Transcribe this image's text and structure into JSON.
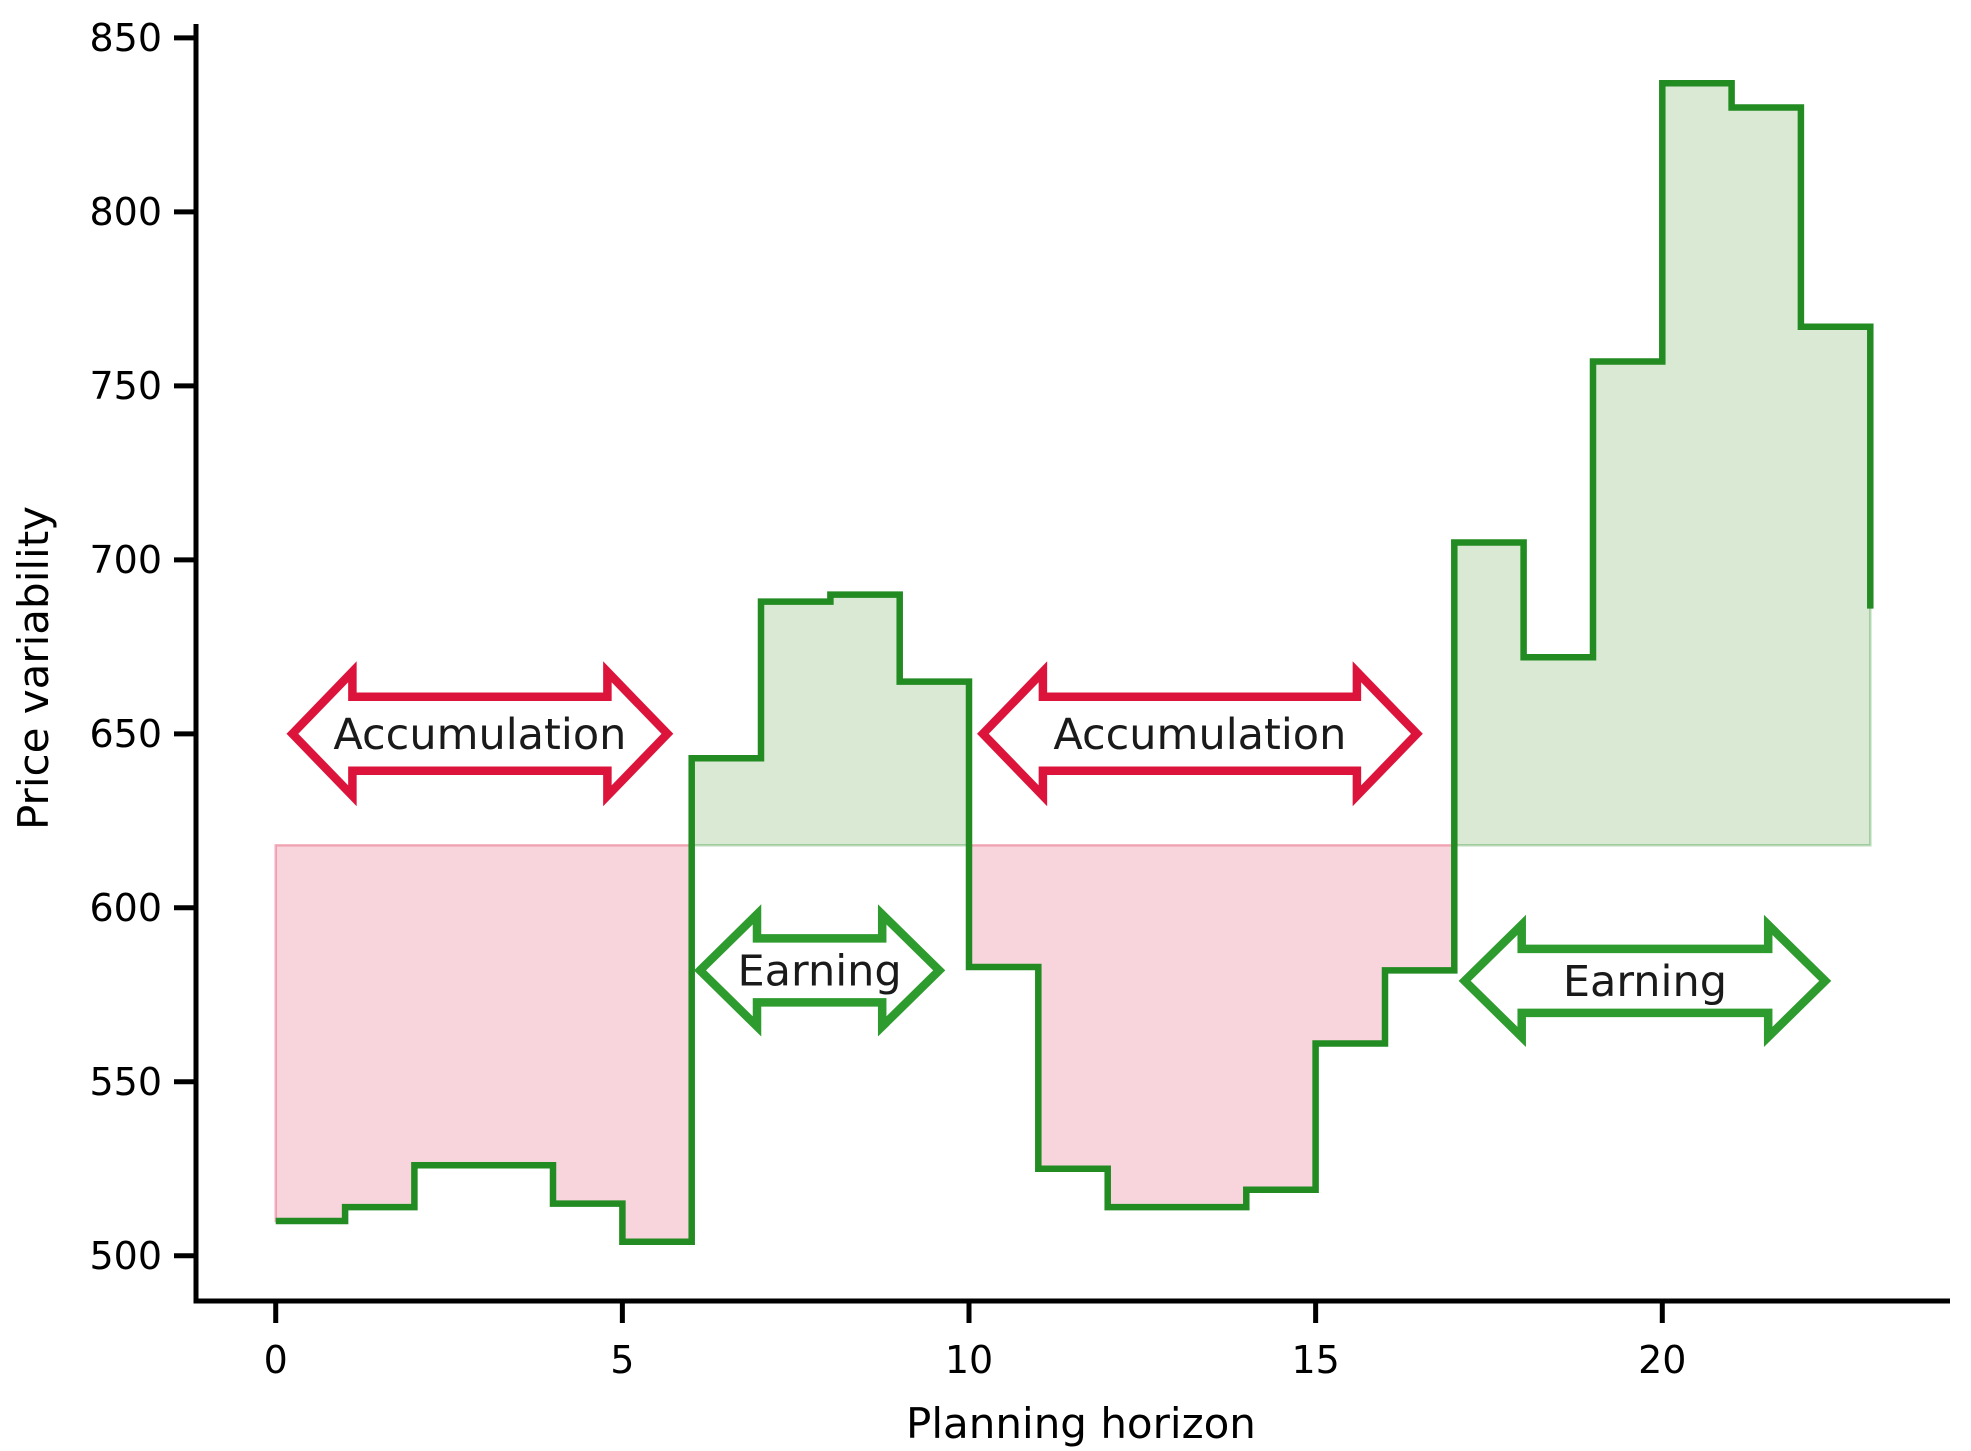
{
  "chart_data": {
    "type": "step",
    "title": "",
    "xlabel": "Planning horizon",
    "ylabel": "Price variability",
    "x": [
      0,
      1,
      2,
      3,
      4,
      5,
      6,
      7,
      8,
      9,
      10,
      11,
      12,
      13,
      14,
      15,
      16,
      17,
      18,
      19,
      20,
      21,
      22,
      23
    ],
    "y": [
      510,
      514,
      526,
      526,
      515,
      504,
      643,
      688,
      690,
      665,
      583,
      525,
      514,
      514,
      519,
      561,
      582,
      705,
      672,
      757,
      837,
      830,
      767,
      686
    ],
    "threshold": 618,
    "xlim": [
      -1.15,
      24.15
    ],
    "ylim": [
      487,
      854
    ],
    "xticks": [
      0,
      5,
      10,
      15,
      20
    ],
    "yticks": [
      500,
      550,
      600,
      650,
      700,
      750,
      800,
      850
    ],
    "grid": false,
    "legend": "none",
    "line_color": "#228B22",
    "fill_above_color": "#d9e9d4",
    "fill_above_edge": "rgba(34,139,34,0.30)",
    "fill_below_color": "#f8d5dd",
    "fill_below_edge": "rgba(220,20,60,0.30)",
    "annotations": [
      {
        "label": "Accumulation",
        "x1": 0.24,
        "x2": 5.65,
        "y": 650,
        "color": "#DC143C",
        "kind": "accumulation"
      },
      {
        "label": "Earning",
        "x1": 6.12,
        "x2": 9.57,
        "y": 582,
        "color": "#2E9B2E",
        "kind": "earning"
      },
      {
        "label": "Accumulation",
        "x1": 10.2,
        "x2": 16.46,
        "y": 650,
        "color": "#DC143C",
        "kind": "accumulation"
      },
      {
        "label": "Earning",
        "x1": 17.15,
        "x2": 22.35,
        "y": 579,
        "color": "#2E9B2E",
        "kind": "earning"
      }
    ]
  }
}
